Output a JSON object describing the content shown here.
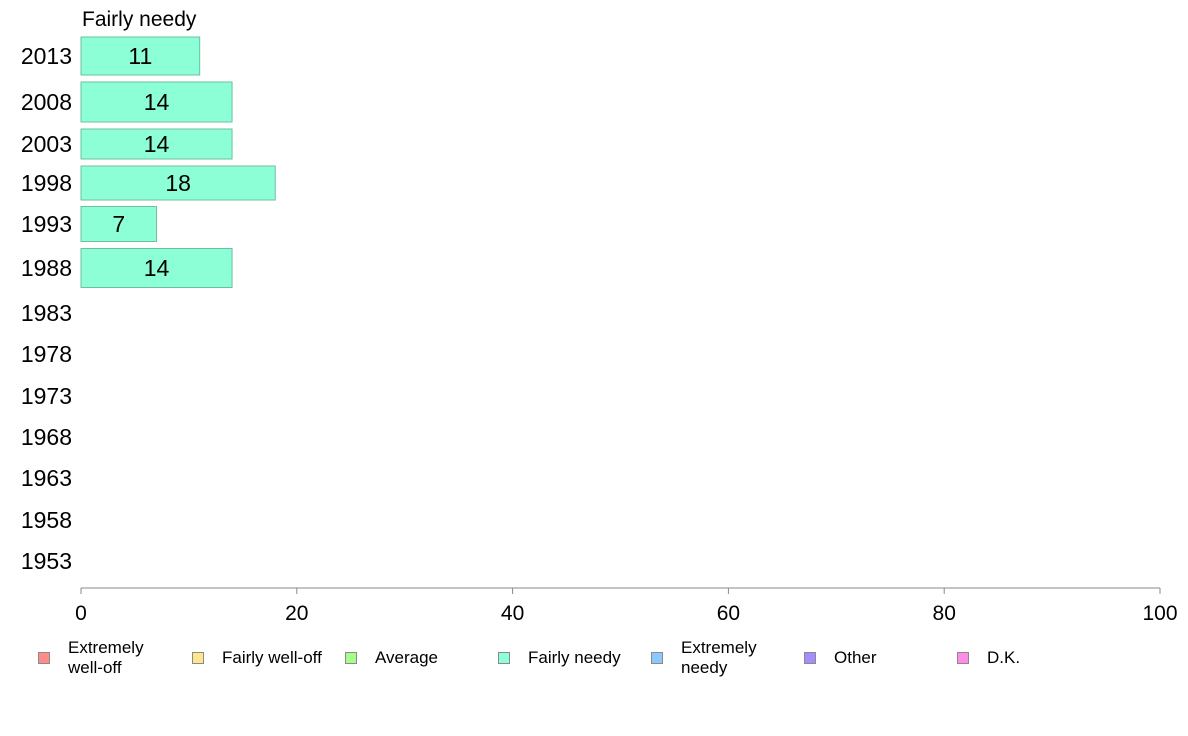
{
  "chart_data": {
    "type": "bar",
    "orientation": "horizontal",
    "title": "Fairly needy",
    "categories": [
      "2013",
      "2008",
      "2003",
      "1998",
      "1993",
      "1988",
      "1983",
      "1978",
      "1973",
      "1968",
      "1963",
      "1958",
      "1953"
    ],
    "values": [
      11,
      14,
      14,
      18,
      7,
      14,
      null,
      null,
      null,
      null,
      null,
      null,
      null
    ],
    "data_labels": [
      "11",
      "14",
      "14",
      "18",
      "7",
      "14",
      "",
      "",
      "",
      "",
      "",
      "",
      ""
    ],
    "xlim": [
      0,
      100
    ],
    "x_ticks": [
      0,
      20,
      40,
      60,
      80,
      100
    ],
    "xlabel": "",
    "ylabel": "",
    "grid": false,
    "bar_color": "#8cffd7",
    "bar_edge_color": "#6fbf9f",
    "legend_position": "bottom",
    "legend": [
      {
        "label": "Extremely\nwell-off",
        "color": "#ff8c8c"
      },
      {
        "label": "Fairly well-off",
        "color": "#ffe68c"
      },
      {
        "label": "Average",
        "color": "#a6ff8c"
      },
      {
        "label": "Fairly needy",
        "color": "#8cffd7"
      },
      {
        "label": "Extremely\nneedy",
        "color": "#8cc8ff"
      },
      {
        "label": "Other",
        "color": "#a68cff"
      },
      {
        "label": "D.K.",
        "color": "#ff8ce6"
      }
    ]
  }
}
